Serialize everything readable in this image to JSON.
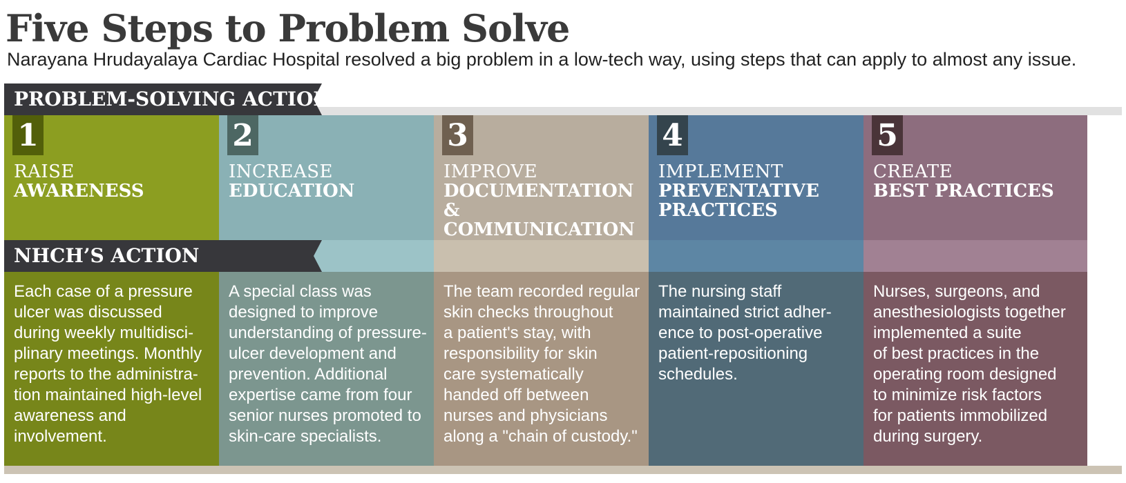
{
  "title": "Five Steps to Problem Solve",
  "subtitle": "Narayana Hrudayalaya Cardiac Hospital resolved a big problem in a low-tech way, using steps that can apply to almost any issue.",
  "problem_banner": "PROBLEM-SOLVING ACTION",
  "action_banner": "NHCH’S ACTION",
  "steps": [
    {
      "number": "1",
      "heading_light": "RAISE",
      "heading_bold": "AWARENESS",
      "description": "Each case of a pressure\nulcer was discussed\nduring weekly multidisci-\nplinary meetings. Monthly\nreports to the administra-\ntion maintained high-level\nawareness and\ninvolvement.",
      "colors": {
        "top": "#8c9e21",
        "mid": "#8c9e21",
        "bottom": "#77861a",
        "num_box": "#525f0a"
      }
    },
    {
      "number": "2",
      "heading_light": "INCREASE",
      "heading_bold": "EDUCATION",
      "description": "A special class was\ndesigned to improve\nunderstanding of pressure-\nulcer development and\nprevention. Additional\nexpertise came from four\nsenior nurses promoted to\nskin-care specialists.",
      "colors": {
        "top": "#8ab1b5",
        "mid": "#9cc3c7",
        "bottom": "#7c968f",
        "num_box": "#4d6763"
      }
    },
    {
      "number": "3",
      "heading_light": "IMPROVE",
      "heading_bold": "DOCUMENTATION & COMMUNICATION",
      "description": "The team recorded regular\nskin checks throughout\na patient's stay, with\nresponsibility for skin\ncare systematically\nhanded off between\nnurses and physicians\nalong a \"chain of custody.\"",
      "colors": {
        "top": "#b8ad9e",
        "mid": "#c9bfae",
        "bottom": "#a89683",
        "num_box": "#6f6050"
      }
    },
    {
      "number": "4",
      "heading_light": "IMPLEMENT",
      "heading_bold": "PREVENTATIVE PRACTICES",
      "description": "The nursing staff\nmaintained strict adher-\nence to post-operative\npatient-repositioning\nschedules.",
      "colors": {
        "top": "#56799a",
        "mid": "#5d86a4",
        "bottom": "#516a77",
        "num_box": "#34444d"
      }
    },
    {
      "number": "5",
      "heading_light": "CREATE",
      "heading_bold": "BEST PRACTICES",
      "description": "Nurses, surgeons, and\nanesthesiologists together\nimplemented a suite\nof best practices in the\noperating room designed\nto minimize risk factors\nfor patients immobilized\nduring surgery.",
      "colors": {
        "top": "#8d6d7e",
        "mid": "#a18193",
        "bottom": "#7b5962",
        "num_box": "#4a3439"
      }
    }
  ]
}
